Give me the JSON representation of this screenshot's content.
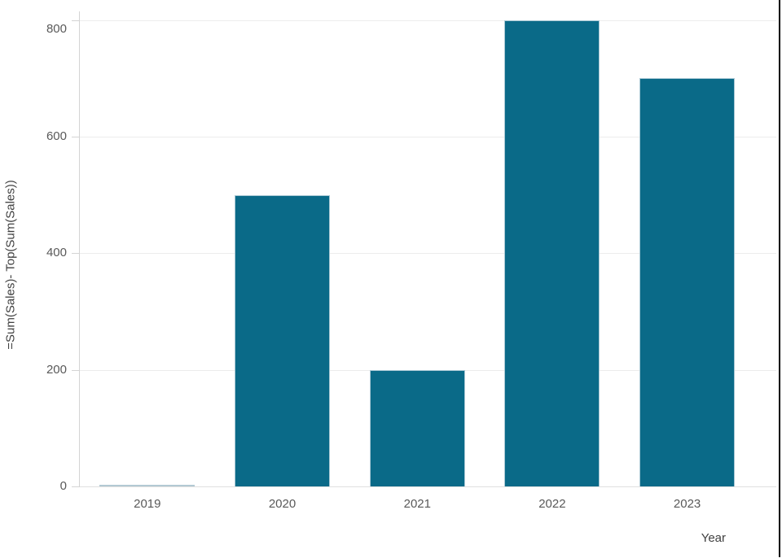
{
  "chart_data": {
    "type": "bar",
    "title": "",
    "categories": [
      "2019",
      "2020",
      "2021",
      "2022",
      "2023"
    ],
    "values": [
      0,
      500,
      200,
      800,
      700
    ],
    "xlabel": "Year",
    "ylabel": "=Sum(Sales)- Top(Sum(Sales))",
    "y_ticks": [
      0,
      200,
      400,
      600,
      800
    ],
    "ylim": [
      0,
      800
    ],
    "grid": true,
    "legend": "none",
    "colors": {
      "bar": "#0a6a88",
      "bar_edge": "#a9c8d4",
      "zero_bar": "#b3c9d3",
      "gridline": "#ececec",
      "baseline": "#e0e0e0",
      "axis_line": "#d4d4d4",
      "tick_label": "#595959",
      "axis_title": "#404040",
      "frame_border": "#000000"
    }
  }
}
